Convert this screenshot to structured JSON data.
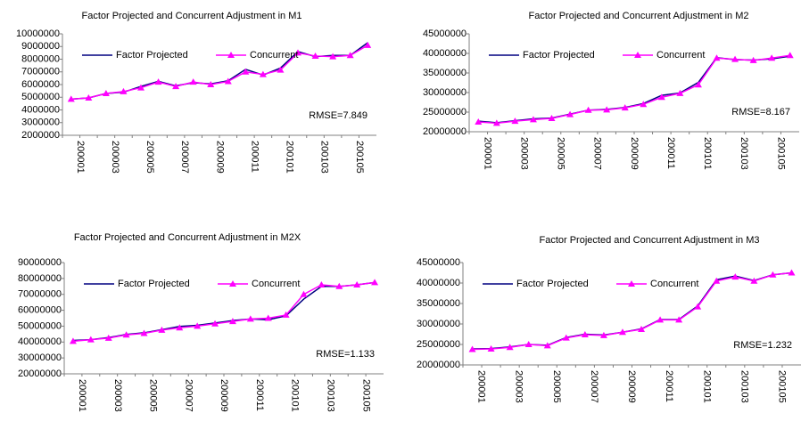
{
  "chart_data": [
    {
      "type": "line",
      "title": "Factor Projected and Concurrent Adjustment in M1",
      "categories": [
        "200001",
        null,
        "200003",
        null,
        "200005",
        null,
        "200007",
        null,
        "200009",
        null,
        "200011",
        null,
        "200101",
        null,
        "200103",
        null,
        "200105",
        null
      ],
      "series": [
        {
          "name": "Factor Projected",
          "color": "#000080",
          "values": [
            4850000,
            4950000,
            5300000,
            5400000,
            5850000,
            6250000,
            5900000,
            6150000,
            6050000,
            6300000,
            7200000,
            6750000,
            7300000,
            8600000,
            8200000,
            8300000,
            8300000,
            9300000
          ]
        },
        {
          "name": "Concurrent",
          "color": "#ff00ff",
          "values": [
            4850000,
            4950000,
            5300000,
            5450000,
            5750000,
            6200000,
            5850000,
            6200000,
            6000000,
            6250000,
            7000000,
            6800000,
            7150000,
            8500000,
            8250000,
            8200000,
            8300000,
            9100000
          ]
        }
      ],
      "ylim": [
        2000000,
        10000000
      ],
      "yticks": [
        2000000,
        3000000,
        4000000,
        5000000,
        6000000,
        7000000,
        8000000,
        9000000,
        10000000
      ],
      "annotation": "RMSE=7.849"
    },
    {
      "type": "line",
      "title": "Factor Projected and Concurrent Adjustment in M2",
      "categories": [
        "200001",
        null,
        "200003",
        null,
        "200005",
        null,
        "200007",
        null,
        "200009",
        null,
        "200011",
        null,
        "200101",
        null,
        "200103",
        null,
        "200105",
        null
      ],
      "series": [
        {
          "name": "Factor Projected",
          "color": "#000080",
          "values": [
            22700000,
            22300000,
            22800000,
            23300000,
            23500000,
            24500000,
            25500000,
            25700000,
            26200000,
            27200000,
            29300000,
            29900000,
            32600000,
            38900000,
            38400000,
            38300000,
            38600000,
            39300000
          ]
        },
        {
          "name": "Concurrent",
          "color": "#ff00ff",
          "values": [
            22500000,
            22200000,
            22700000,
            23100000,
            23400000,
            24400000,
            25500000,
            25600000,
            26100000,
            27000000,
            28800000,
            29800000,
            32000000,
            38800000,
            38500000,
            38200000,
            38800000,
            39500000
          ]
        }
      ],
      "ylim": [
        20000000,
        45000000
      ],
      "yticks": [
        20000000,
        25000000,
        30000000,
        35000000,
        40000000,
        45000000
      ],
      "annotation": "RMSE=8.167"
    },
    {
      "type": "line",
      "title": "Factor Projected and Concurrent Adjustment in M2X",
      "categories": [
        "200001",
        null,
        "200003",
        null,
        "200005",
        null,
        "200007",
        null,
        "200009",
        null,
        "200011",
        null,
        "200101",
        null,
        "200103",
        null,
        "200105",
        null
      ],
      "series": [
        {
          "name": "Factor Projected",
          "color": "#000080",
          "values": [
            41000000,
            41500000,
            42800000,
            44800000,
            45800000,
            47800000,
            49800000,
            50500000,
            52000000,
            53500000,
            54500000,
            54000000,
            56500000,
            67000000,
            75000000,
            75000000,
            76000000,
            77500000
          ]
        },
        {
          "name": "Concurrent",
          "color": "#ff00ff",
          "values": [
            40500000,
            41500000,
            42500000,
            44500000,
            45500000,
            47500000,
            49000000,
            50000000,
            51500000,
            53000000,
            54500000,
            55000000,
            57000000,
            70000000,
            76000000,
            75000000,
            76000000,
            77500000
          ]
        }
      ],
      "ylim": [
        20000000,
        90000000
      ],
      "yticks": [
        20000000,
        30000000,
        40000000,
        50000000,
        60000000,
        70000000,
        80000000,
        90000000
      ],
      "annotation": "RMSE=1.133"
    },
    {
      "type": "line",
      "title": "Factor Projected and Concurrent Adjustment in M3",
      "categories": [
        "200001",
        null,
        "200003",
        null,
        "200005",
        null,
        "200007",
        null,
        "200009",
        null,
        "200011",
        null,
        "200101",
        null,
        "200103",
        null,
        "200105",
        null
      ],
      "series": [
        {
          "name": "Factor Projected",
          "color": "#000080",
          "values": [
            23900000,
            24000000,
            24400000,
            25000000,
            24800000,
            26700000,
            27500000,
            27300000,
            28000000,
            28800000,
            31100000,
            31100000,
            34400000,
            40800000,
            41700000,
            40600000,
            42000000,
            42500000
          ]
        },
        {
          "name": "Concurrent",
          "color": "#ff00ff",
          "values": [
            23800000,
            23900000,
            24300000,
            25000000,
            24700000,
            26600000,
            27400000,
            27200000,
            28000000,
            28700000,
            31000000,
            31000000,
            34200000,
            40500000,
            41500000,
            40500000,
            42000000,
            42500000
          ]
        }
      ],
      "ylim": [
        20000000,
        45000000
      ],
      "yticks": [
        20000000,
        25000000,
        30000000,
        35000000,
        40000000,
        45000000
      ],
      "annotation": "RMSE=1.232"
    }
  ]
}
